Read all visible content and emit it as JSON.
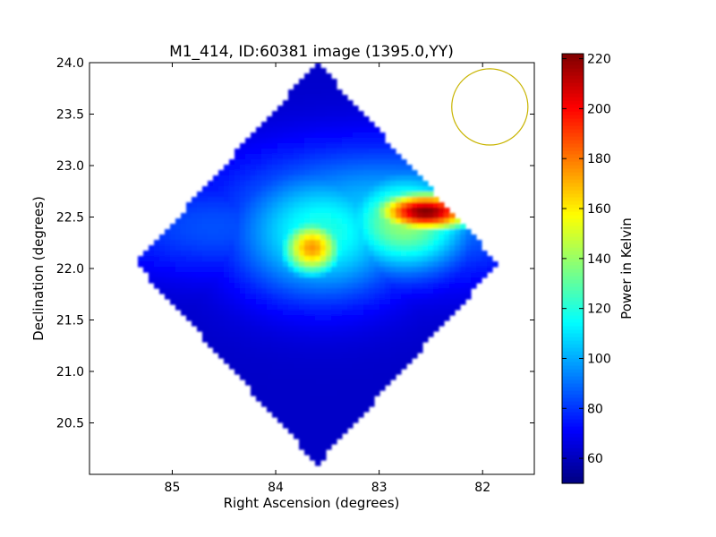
{
  "chart_data": {
    "type": "heatmap",
    "title": "M1_414, ID:60381 image (1395.0,YY)",
    "xlabel": "Right Ascension (degrees)",
    "ylabel": "Declination (degrees)",
    "xlim": [
      85.8,
      81.5
    ],
    "ylim": [
      20.0,
      24.0
    ],
    "x_ticks": [
      {
        "value": 85,
        "label": "85"
      },
      {
        "value": 84,
        "label": "84"
      },
      {
        "value": 83,
        "label": "83"
      },
      {
        "value": 82,
        "label": "82"
      }
    ],
    "y_ticks": [
      {
        "value": 20.5,
        "label": "20.5"
      },
      {
        "value": 21.0,
        "label": "21.0"
      },
      {
        "value": 21.5,
        "label": "21.5"
      },
      {
        "value": 22.0,
        "label": "22.0"
      },
      {
        "value": 22.5,
        "label": "22.5"
      },
      {
        "value": 23.0,
        "label": "23.0"
      },
      {
        "value": 23.5,
        "label": "23.5"
      },
      {
        "value": 24.0,
        "label": "24.0"
      }
    ],
    "colorbar": {
      "label": "Power in Kelvin",
      "min": 50,
      "max": 222,
      "colormap": "jet",
      "ticks": [
        {
          "value": 60,
          "label": "60"
        },
        {
          "value": 80,
          "label": "80"
        },
        {
          "value": 100,
          "label": "100"
        },
        {
          "value": 120,
          "label": "120"
        },
        {
          "value": 140,
          "label": "140"
        },
        {
          "value": 160,
          "label": "160"
        },
        {
          "value": 180,
          "label": "180"
        },
        {
          "value": 200,
          "label": "200"
        },
        {
          "value": 220,
          "label": "220"
        }
      ]
    },
    "field_region": {
      "center": [
        83.6,
        22.05
      ],
      "half_width_ra": 1.75,
      "half_height_dec": 1.95
    },
    "background_level": 62,
    "features": [
      {
        "ra": 82.55,
        "dec": 22.55,
        "peak": 222,
        "sigma_ra": 0.35,
        "sigma_dec": 0.14
      },
      {
        "ra": 82.75,
        "dec": 22.45,
        "peak": 140,
        "sigma_ra": 0.45,
        "sigma_dec": 0.35
      },
      {
        "ra": 83.65,
        "dec": 22.2,
        "peak": 175,
        "sigma_ra": 0.22,
        "sigma_dec": 0.2
      },
      {
        "ra": 83.55,
        "dec": 22.35,
        "peak": 120,
        "sigma_ra": 0.6,
        "sigma_dec": 0.45
      },
      {
        "ra": 83.0,
        "dec": 22.55,
        "peak": 105,
        "sigma_ra": 1.1,
        "sigma_dec": 0.45
      },
      {
        "ra": 84.6,
        "dec": 22.4,
        "peak": 85,
        "sigma_ra": 0.8,
        "sigma_dec": 0.35
      }
    ],
    "beam_circle": {
      "ra": 81.93,
      "dec": 23.57,
      "radius_dec": 0.37,
      "color": "#c8b400"
    }
  }
}
